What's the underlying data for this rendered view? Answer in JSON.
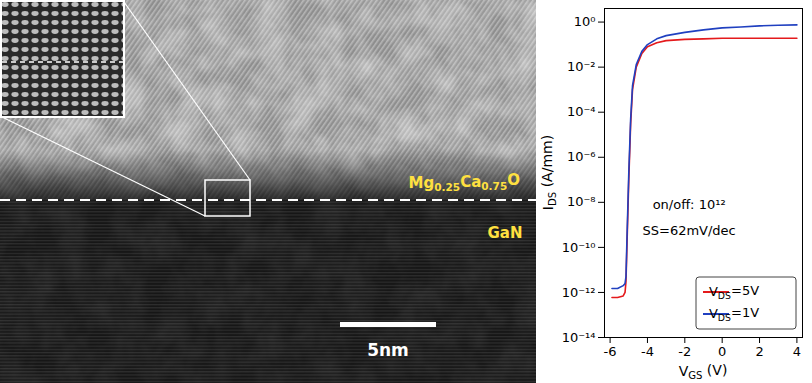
{
  "image_panel": {
    "oxide_label": "Mg0.25Ca0.75O",
    "substrate_label": "GaN",
    "scale_bar_label": "5nm"
  },
  "chart_data": {
    "type": "line",
    "x_label": "VGS (V)",
    "y_label": "IDS (A/mm)",
    "log": "y",
    "grid": false,
    "legend": "lower right",
    "xlim": [
      -6.3,
      4.3
    ],
    "xticks": [
      -6,
      -4,
      -2,
      0,
      2,
      4
    ],
    "ylim": [
      1e-14,
      4
    ],
    "yticks": [
      {
        "value": 1e-14,
        "label": "10⁻¹⁴"
      },
      {
        "value": 1e-12,
        "label": "10⁻¹²"
      },
      {
        "value": 1e-10,
        "label": "10⁻¹⁰"
      },
      {
        "value": 1e-08,
        "label": "10⁻⁸"
      },
      {
        "value": 1e-06,
        "label": "10⁻⁶"
      },
      {
        "value": 0.0001,
        "label": "10⁻⁴"
      },
      {
        "value": 0.01,
        "label": "10⁻²"
      },
      {
        "value": 1,
        "label": "10⁰"
      }
    ],
    "annotations": [
      "on/off: 10¹²",
      "SS=62mV/dec"
    ],
    "x": [
      -5.9,
      -5.6,
      -5.3,
      -5.2,
      -5.15,
      -5.1,
      -5.0,
      -4.9,
      -4.8,
      -4.6,
      -4.3,
      -4.0,
      -3.5,
      -3.0,
      -2.0,
      -1.0,
      0,
      1,
      2,
      3,
      4
    ],
    "series": [
      {
        "name": "VDS=5V",
        "color": "#e41a1c",
        "values": [
          6e-13,
          6e-13,
          7e-13,
          1e-12,
          3e-12,
          1e-10,
          1e-07,
          3e-05,
          0.001,
          0.01,
          0.04,
          0.08,
          0.12,
          0.15,
          0.17,
          0.18,
          0.19,
          0.19,
          0.19,
          0.19,
          0.19
        ]
      },
      {
        "name": "VDS=1V",
        "color": "#2040c0",
        "values": [
          1.5e-12,
          1.5e-12,
          2e-12,
          2.5e-12,
          5e-12,
          2e-10,
          2e-07,
          5e-05,
          0.0015,
          0.013,
          0.05,
          0.1,
          0.18,
          0.25,
          0.35,
          0.45,
          0.55,
          0.6,
          0.68,
          0.72,
          0.75
        ]
      }
    ]
  }
}
